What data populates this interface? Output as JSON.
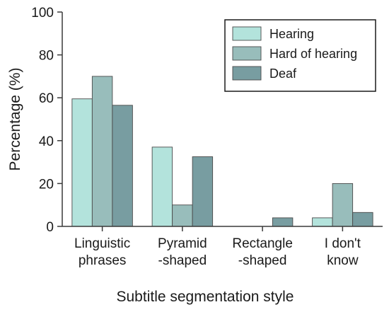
{
  "chart_data": {
    "type": "bar",
    "xlabel": "Subtitle segmentation style",
    "ylabel": "Percentage (%)",
    "ylim": [
      0,
      100
    ],
    "yticks": [
      "0",
      "20",
      "40",
      "60",
      "80",
      "100"
    ],
    "grid": false,
    "legend_position": "top-right",
    "categories": [
      [
        "Linguistic",
        "phrases"
      ],
      [
        "Pyramid",
        "-shaped"
      ],
      [
        "Rectangle",
        "-shaped"
      ],
      [
        "I don't",
        "know"
      ]
    ],
    "series": [
      {
        "name": "Hearing",
        "color": "#b3e3dc",
        "values": [
          59.5,
          37,
          0,
          4
        ]
      },
      {
        "name": "Hard of hearing",
        "color": "#98bdbb",
        "values": [
          70,
          10,
          0,
          20
        ]
      },
      {
        "name": "Deaf",
        "color": "#789da1",
        "values": [
          56.5,
          32.5,
          4,
          6.5
        ]
      }
    ]
  }
}
